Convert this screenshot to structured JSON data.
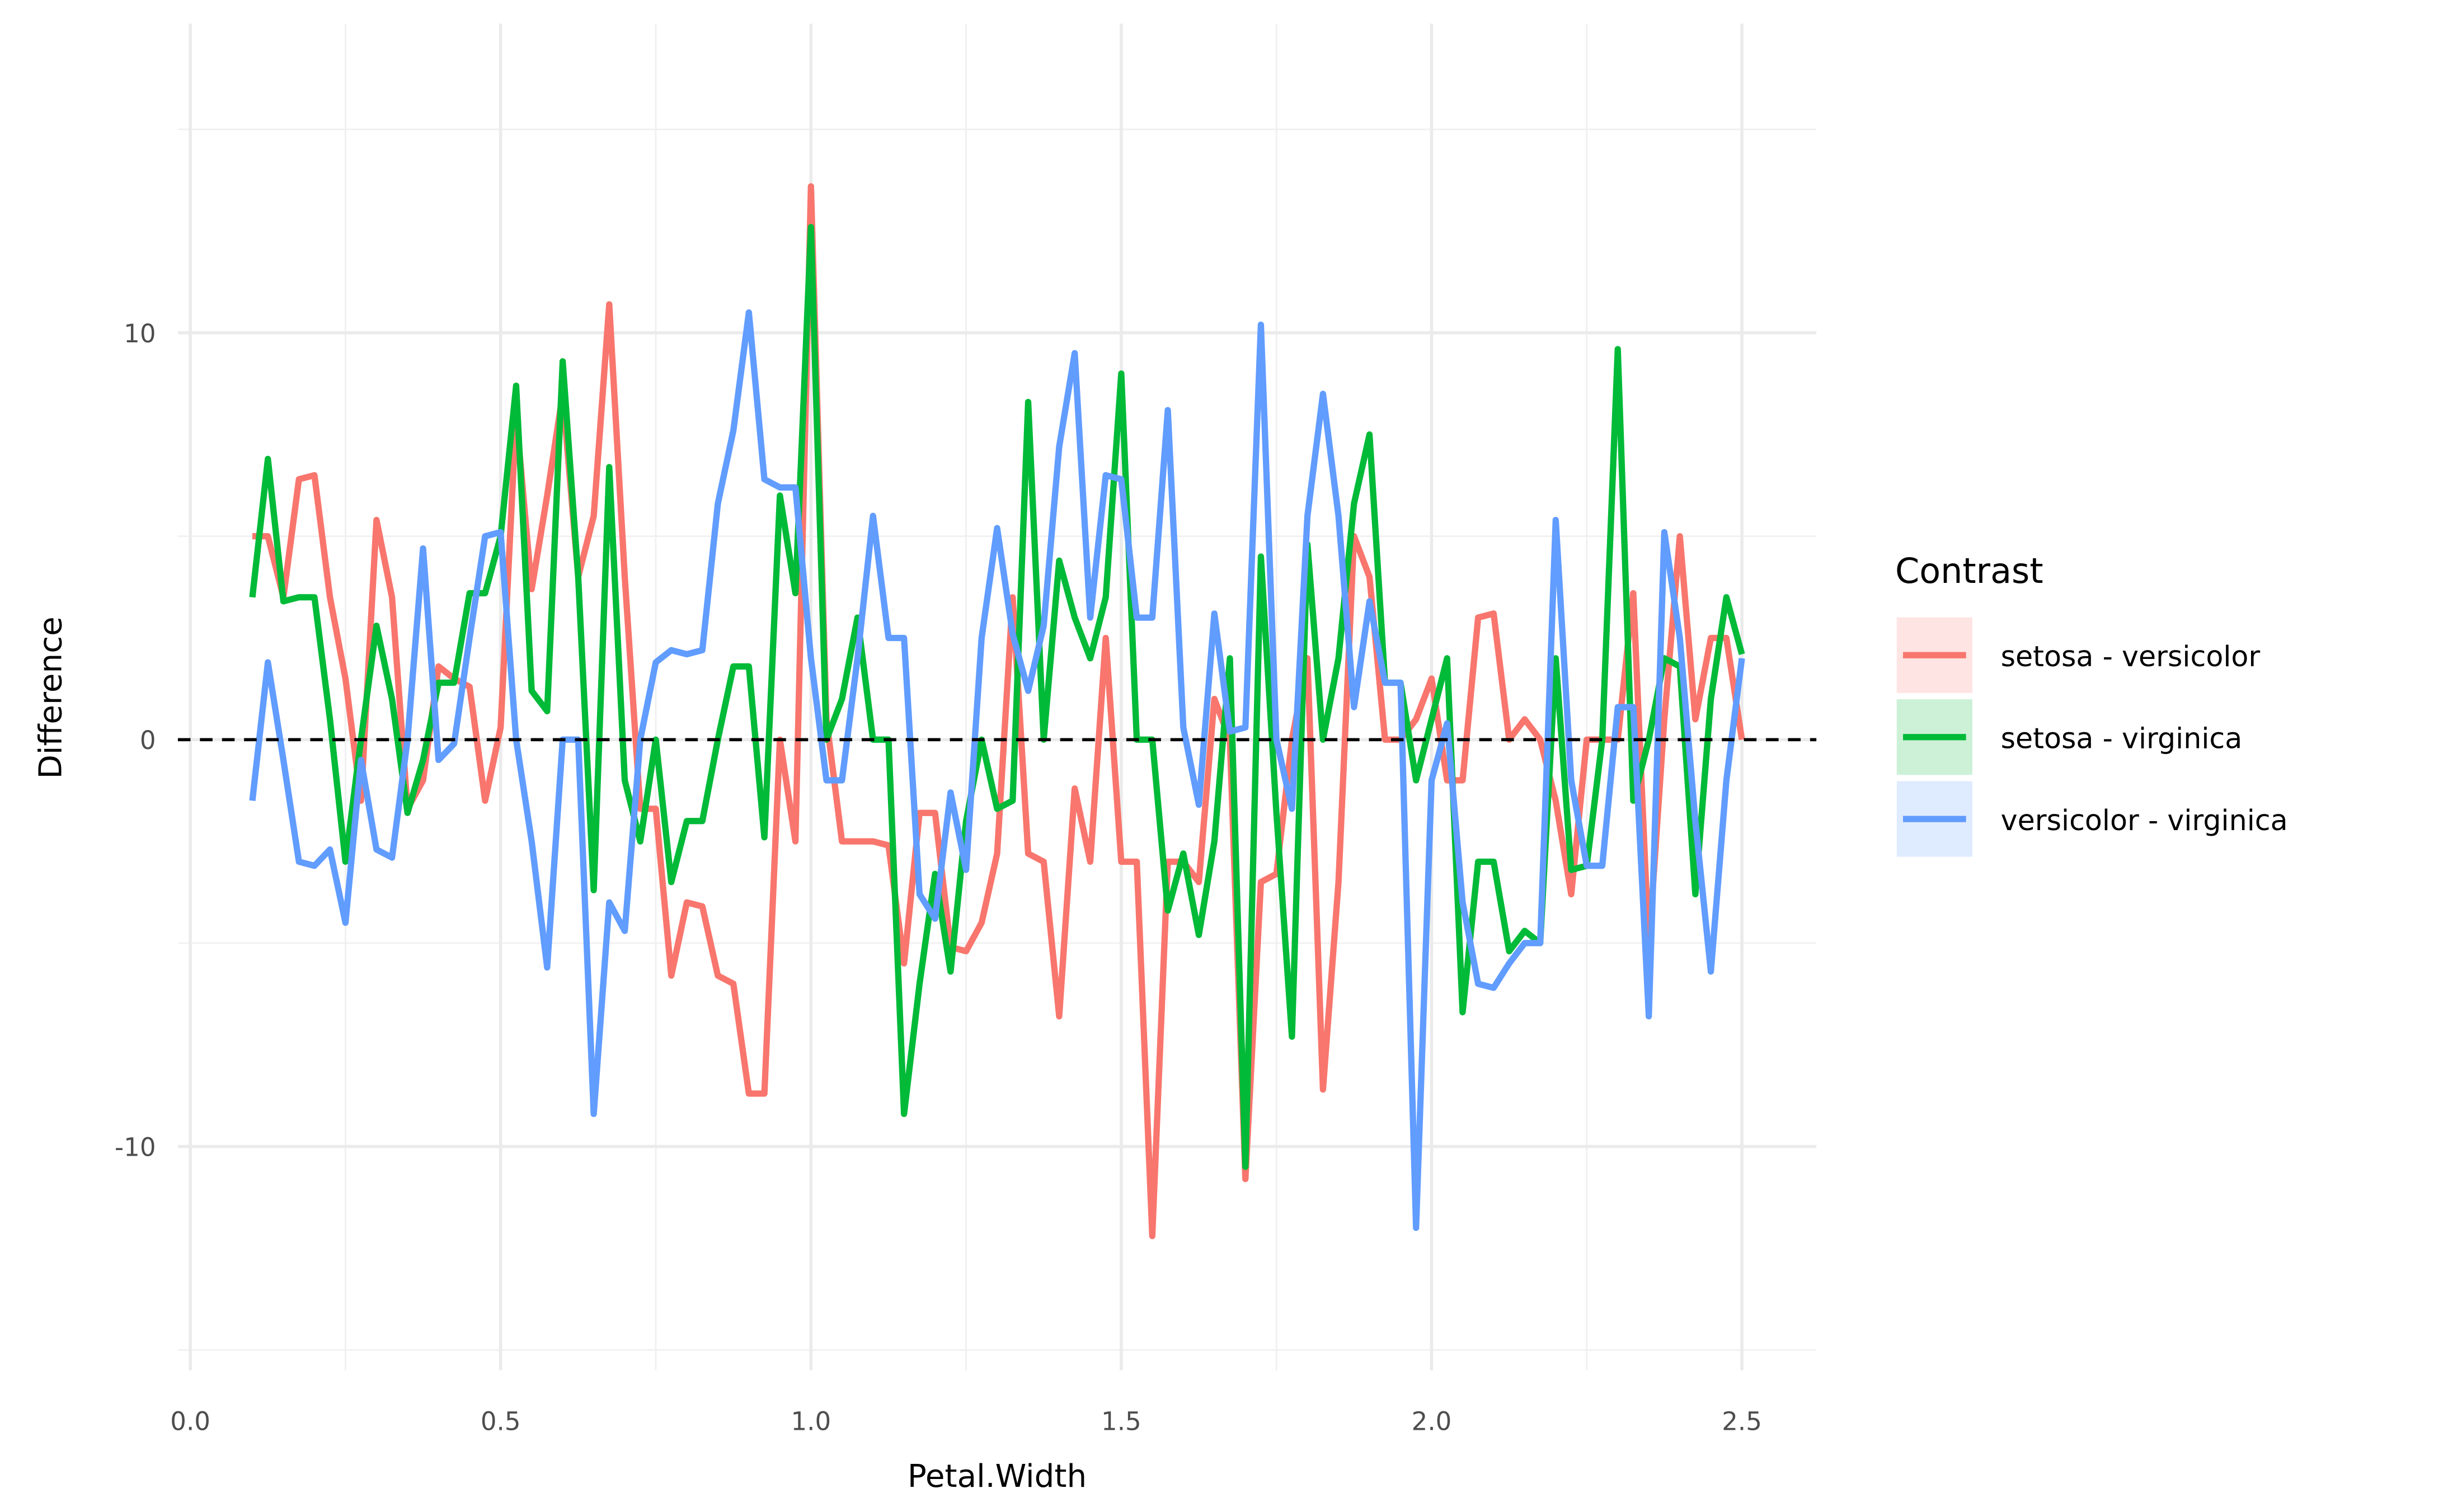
{
  "chart_data": {
    "type": "line",
    "xlabel": "Petal.Width",
    "ylabel": "Difference",
    "legend_title": "Contrast",
    "legend": "right",
    "grid": true,
    "hline": 0,
    "xlim": [
      -0.02,
      2.62
    ],
    "ylim": [
      -15.5,
      17.6
    ],
    "xticks": [
      {
        "value": 0,
        "label": "0.0"
      },
      0.5,
      {
        "value": 1,
        "label": "1.0"
      },
      1.5,
      {
        "value": 2,
        "label": "2.0"
      },
      2.5
    ],
    "xminor": [
      0.25,
      0.75,
      1.25,
      1.75,
      2.25
    ],
    "yticks": [
      -10,
      0,
      10
    ],
    "yminor": [
      -15,
      -5,
      5,
      15
    ],
    "x": [
      0.1,
      0.125,
      0.15,
      0.175,
      0.2,
      0.225,
      0.25,
      0.275,
      0.3,
      0.325,
      0.35,
      0.375,
      0.4,
      0.425,
      0.45,
      0.475,
      0.5,
      0.525,
      0.55,
      0.575,
      0.6,
      0.625,
      0.65,
      0.675,
      0.7,
      0.725,
      0.75,
      0.775,
      0.8,
      0.825,
      0.85,
      0.875,
      0.9,
      0.925,
      0.95,
      0.975,
      1.0,
      1.025,
      1.05,
      1.075,
      1.1,
      1.125,
      1.15,
      1.175,
      1.2,
      1.225,
      1.25,
      1.275,
      1.3,
      1.325,
      1.35,
      1.375,
      1.4,
      1.425,
      1.45,
      1.475,
      1.5,
      1.525,
      1.55,
      1.575,
      1.6,
      1.625,
      1.65,
      1.675,
      1.7,
      1.725,
      1.75,
      1.775,
      1.8,
      1.825,
      1.85,
      1.875,
      1.9,
      1.925,
      1.95,
      1.975,
      2.0,
      2.025,
      2.05,
      2.075,
      2.1,
      2.125,
      2.15,
      2.175,
      2.2,
      2.225,
      2.25,
      2.275,
      2.3,
      2.325,
      2.35,
      2.375,
      2.4,
      2.425,
      2.45,
      2.475,
      2.5
    ],
    "series": [
      {
        "name": "setosa - versicolor",
        "color": "#f8766d",
        "values": [
          5,
          5,
          3.5,
          6.4,
          6.5,
          3.5,
          1.5,
          -1.5,
          5.4,
          3.5,
          -1.7,
          -1,
          1.8,
          1.5,
          1.3,
          -1.5,
          0.3,
          8,
          3.7,
          6,
          8.5,
          4,
          5.5,
          10.7,
          4,
          -1.7,
          -1.7,
          -5.8,
          -4,
          -4.1,
          -5.8,
          -6,
          -8.7,
          -8.7,
          0,
          -2.5,
          13.6,
          0.5,
          -2.5,
          -2.5,
          -2.5,
          -2.6,
          -5.5,
          -1.8,
          -1.8,
          -5.1,
          -5.2,
          -4.5,
          -2.8,
          3.5,
          -2.8,
          -3,
          -6.8,
          -1.2,
          -3,
          2.5,
          -3,
          -3,
          -12.2,
          -3,
          -3,
          -3.5,
          1,
          0,
          -10.8,
          -3.5,
          -3.3,
          0,
          2,
          -8.6,
          -3.5,
          5,
          4,
          0,
          0,
          0.5,
          1.5,
          -1,
          -1,
          3,
          3.1,
          0,
          0.5,
          0,
          -1.5,
          -3.8,
          0,
          0,
          0,
          3.6,
          -5.1,
          0.5,
          5,
          0.5,
          2.5,
          2.5,
          0
        ]
      },
      {
        "name": "setosa - virginica",
        "color": "#00ba38",
        "values": [
          3.5,
          6.9,
          3.4,
          3.5,
          3.5,
          0.5,
          -3,
          0,
          2.8,
          1,
          -1.8,
          -0.5,
          1.4,
          1.4,
          3.6,
          3.6,
          5,
          8.7,
          1.2,
          0.7,
          9.3,
          4,
          -3.7,
          6.7,
          -1,
          -2.5,
          0,
          -3.5,
          -2,
          -2,
          0,
          1.8,
          1.8,
          -2.4,
          6,
          3.6,
          12.6,
          0,
          1,
          3,
          0,
          0,
          -9.2,
          -6,
          -3.3,
          -5.7,
          -2,
          0,
          -1.7,
          -1.5,
          8.3,
          0,
          4.4,
          3,
          2,
          3.5,
          9,
          0,
          0,
          -4.2,
          -2.8,
          -4.8,
          -2.5,
          2,
          -10.5,
          4.5,
          -1.8,
          -7.3,
          4.8,
          0,
          2,
          5.8,
          7.5,
          1.4,
          1.4,
          -1,
          0.5,
          2,
          -6.7,
          -3,
          -3,
          -5.2,
          -4.7,
          -5,
          2,
          -3.2,
          -3.1,
          0,
          9.6,
          -1.5,
          0,
          2,
          1.8,
          -3.8,
          1,
          3.5,
          2.1
        ]
      },
      {
        "name": "versicolor - virginica",
        "color": "#619cff",
        "values": [
          -1.5,
          1.9,
          -0.5,
          -3,
          -3.1,
          -2.7,
          -4.5,
          -0.5,
          -2.7,
          -2.9,
          0,
          4.7,
          -0.5,
          -0.1,
          2.5,
          5,
          5.1,
          0,
          -2.5,
          -5.6,
          0,
          0,
          -9.2,
          -4,
          -4.7,
          0,
          1.9,
          2.2,
          2.1,
          2.2,
          5.8,
          7.6,
          10.5,
          6.4,
          6.2,
          6.2,
          2,
          -1,
          -1,
          2,
          5.5,
          2.5,
          2.5,
          -3.8,
          -4.4,
          -1.3,
          -3.2,
          2.5,
          5.2,
          2.6,
          1.2,
          2.8,
          7.2,
          9.5,
          3,
          6.5,
          6.4,
          3,
          3,
          8.1,
          0.3,
          -1.6,
          3.1,
          0.2,
          0.3,
          10.2,
          0,
          -1.7,
          5.5,
          8.5,
          5.5,
          0.8,
          3.4,
          1.4,
          1.4,
          -12,
          -1,
          0.4,
          -4,
          -6,
          -6.1,
          -5.5,
          -5,
          -5,
          5.4,
          -1,
          -3.1,
          -3.1,
          0.8,
          0.8,
          -6.8,
          5.1,
          2.5,
          -2,
          -5.7,
          -1,
          2
        ]
      }
    ]
  }
}
